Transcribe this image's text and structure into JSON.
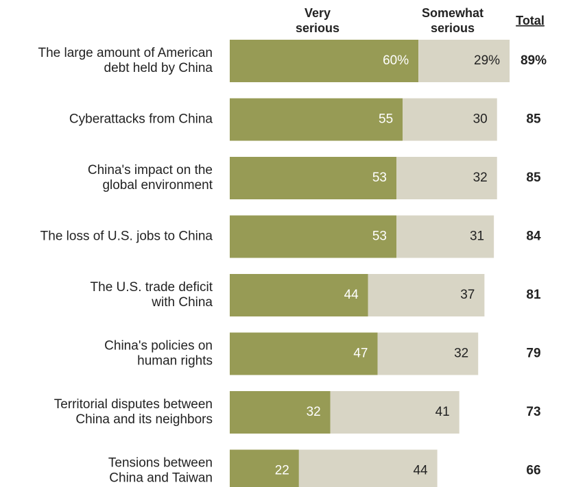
{
  "chart_data": {
    "type": "stacked-bar",
    "categories": [
      "The large amount of American\ndebt held by China",
      "Cyberattacks from China",
      "China's impact on the\nglobal environment",
      "The loss of U.S. jobs to China",
      "The U.S. trade deficit\nwith China",
      "China's policies on\nhuman rights",
      "Territorial disputes between\nChina and its neighbors",
      "Tensions between\nChina and Taiwan"
    ],
    "series": [
      {
        "name": "Very\nserious",
        "color": "#979b55",
        "values": [
          60,
          55,
          53,
          53,
          44,
          47,
          32,
          22
        ],
        "value_labels": [
          "60%",
          "55",
          "53",
          "53",
          "44",
          "47",
          "32",
          "22"
        ]
      },
      {
        "name": "Somewhat\nserious",
        "color": "#d8d5c5",
        "values": [
          29,
          30,
          32,
          31,
          37,
          32,
          41,
          44
        ],
        "value_labels": [
          "29%",
          "30",
          "32",
          "31",
          "37",
          "32",
          "41",
          "44"
        ]
      }
    ],
    "totals": {
      "name": "Total",
      "values": [
        89,
        85,
        85,
        84,
        81,
        79,
        73,
        66
      ],
      "value_labels": [
        "89%",
        "85",
        "85",
        "84",
        "81",
        "79",
        "73",
        "66"
      ]
    }
  }
}
